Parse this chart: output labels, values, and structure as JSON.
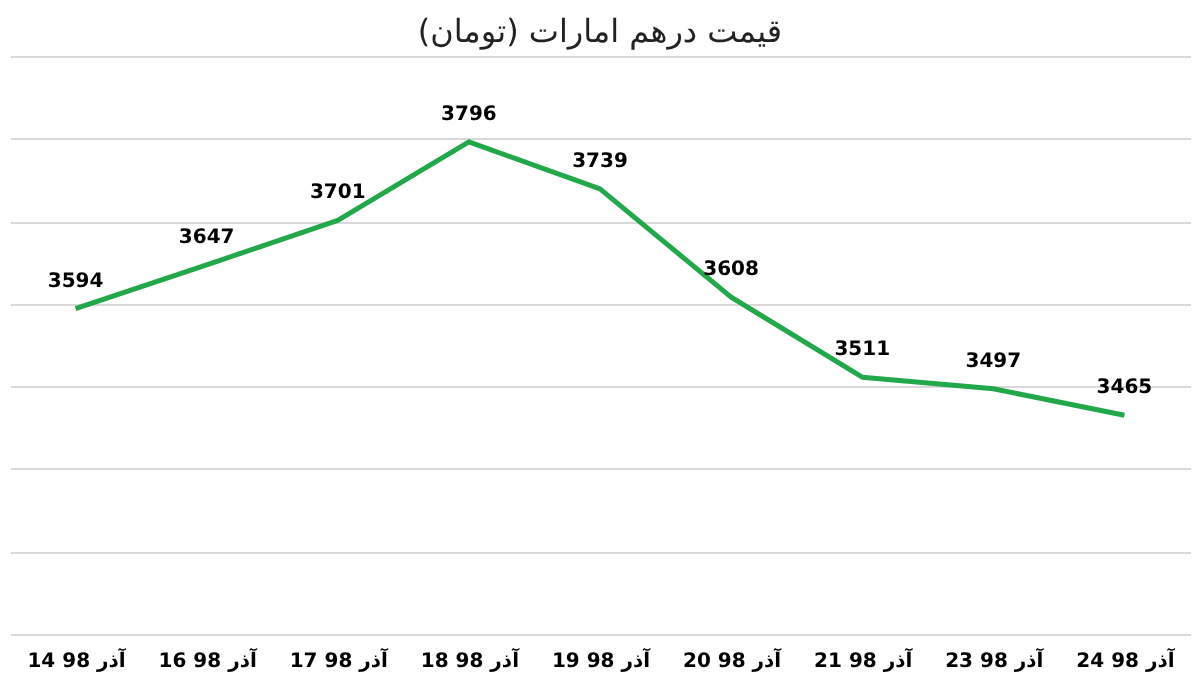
{
  "chart_data": {
    "type": "line",
    "title": "قیمت درهم امارات (تومان)",
    "categories": [
      "14 آذر 98",
      "16 آذر 98",
      "17 آذر 98",
      "18 آذر 98",
      "19 آذر 98",
      "20 آذر 98",
      "21 آذر 98",
      "23 آذر 98",
      "24 آذر 98"
    ],
    "series": [
      {
        "color": "#22a84a",
        "values": [
          3594,
          3647,
          3701,
          3796,
          3739,
          3608,
          3511,
          3497,
          3465
        ]
      }
    ],
    "ylim": [
      3200,
      3900
    ],
    "yticks": [
      {
        "value": 3200,
        "label": null
      },
      {
        "value": 3300,
        "label": null
      },
      {
        "value": 3400,
        "label": null
      },
      {
        "value": 3500,
        "label": null
      },
      {
        "value": 3600,
        "label": null
      },
      {
        "value": 3700,
        "label": null
      },
      {
        "value": 3800,
        "label": null
      },
      {
        "value": 3900,
        "label": null
      }
    ],
    "grid": "y",
    "tick_labels": "x",
    "data_labels": true,
    "marker": "none",
    "line_style": "solid"
  }
}
